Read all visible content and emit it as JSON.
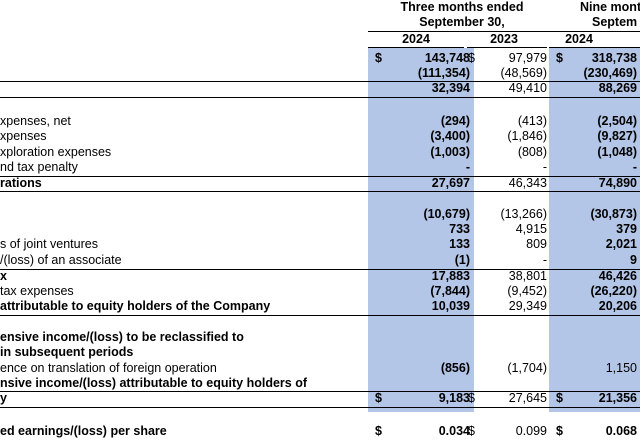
{
  "colors": {
    "highlight_column": "#b4c6e7"
  },
  "header": {
    "group_a_line1": "Three months ended",
    "group_a_line2": "September 30,",
    "group_b_line1": "Nine mont",
    "group_b_line2": "Septem",
    "col1_year": "2024",
    "col2_year": "2023",
    "col3_year": "2024"
  },
  "rows": [
    {
      "label": "",
      "cur1": "$",
      "v1": "143,748",
      "cur2": "$",
      "v2": "97,979",
      "cur3": "$",
      "v3": "318,738"
    },
    {
      "label": "",
      "v1": "(111,354)",
      "v2": "(48,569)",
      "v3": "(230,469)"
    },
    {
      "label": "",
      "v1": "32,394",
      "v2": "49,410",
      "v3": "88,269"
    },
    {
      "label": "xpenses, net",
      "v1": "(294)",
      "v2": "(413)",
      "v3": "(2,504)"
    },
    {
      "label": "xpenses",
      "v1": "(3,400)",
      "v2": "(1,846)",
      "v3": "(9,827)"
    },
    {
      "label": "xploration expenses",
      "v1": "(1,003)",
      "v2": "(808)",
      "v3": "(1,048)"
    },
    {
      "label": "nd tax penalty",
      "v1": "-",
      "v2": "-",
      "v3": "-"
    },
    {
      "label": "rations",
      "v1": "27,697",
      "v2": "46,343",
      "v3": "74,890"
    },
    {
      "label": "",
      "v1": "(10,679)",
      "v2": "(13,266)",
      "v3": "(30,873)"
    },
    {
      "label": "",
      "v1": "733",
      "v2": "4,915",
      "v3": "379"
    },
    {
      "label": "s of joint ventures",
      "v1": "133",
      "v2": "809",
      "v3": "2,021"
    },
    {
      "label": "/(loss) of an associate",
      "v1": "(1)",
      "v2": "-",
      "v3": "9"
    },
    {
      "label": "x",
      "v1": "17,883",
      "v2": "38,801",
      "v3": "46,426"
    },
    {
      "label": "tax expenses",
      "v1": "(7,844)",
      "v2": "(9,452)",
      "v3": "(26,220)"
    },
    {
      "label": "attributable to equity holders of the Company",
      "v1": "10,039",
      "v2": "29,349",
      "v3": "20,206"
    },
    {
      "label": "ensive income/(loss) to be reclassified to"
    },
    {
      "label": "in subsequent periods"
    },
    {
      "label": "ence on translation of foreign operation",
      "v1": "(856)",
      "v2": "(1,704)",
      "v3": "1,150"
    },
    {
      "label": "nsive income/(loss) attributable to equity holders of"
    },
    {
      "label": "y",
      "cur1": "$",
      "v1": "9,183",
      "cur2": "$",
      "v2": "27,645",
      "cur3": "$",
      "v3": "21,356"
    },
    {
      "label": "ed earnings/(loss) per share",
      "cur1": "$",
      "v1": "0.034",
      "cur2": "$",
      "v2": "0.099",
      "cur3": "$",
      "v3": "0.068"
    }
  ]
}
